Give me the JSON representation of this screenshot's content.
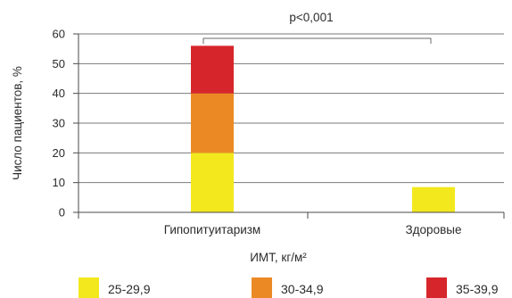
{
  "chart_data": {
    "type": "bar",
    "stacked": true,
    "categories": [
      "Гипопитуитаризм",
      "Здоровые"
    ],
    "series": [
      {
        "name": "25-29,9",
        "values": [
          20,
          8.5
        ],
        "color": "#f3e81d"
      },
      {
        "name": "30-34,9",
        "values": [
          20,
          0
        ],
        "color": "#eb8a25"
      },
      {
        "name": "35-39,9",
        "values": [
          16,
          0
        ],
        "color": "#d7262b"
      }
    ],
    "xlabel": "ИМТ, кг/м²",
    "ylabel": "Число пациентов, %",
    "ylim": [
      0,
      60
    ],
    "yticks": [
      0,
      10,
      20,
      30,
      40,
      50,
      60
    ],
    "grid": true,
    "legend_position": "bottom",
    "annotation": {
      "text": "p<0,001",
      "from_category": 0,
      "to_category": 1
    }
  }
}
